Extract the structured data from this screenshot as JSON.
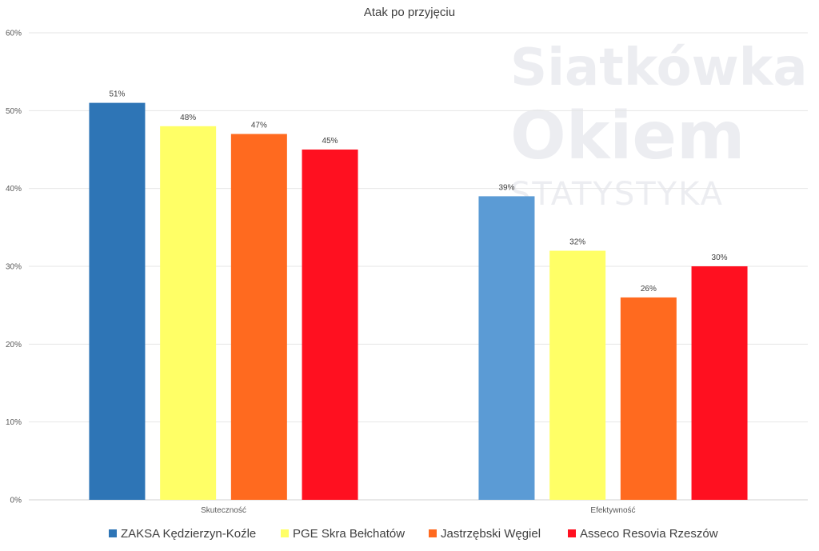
{
  "watermark": {
    "line1": "Siatkówka",
    "line2": "Okiem",
    "line3": "STATYSTYKA"
  },
  "chart_data": {
    "type": "bar",
    "title": "Atak po przyjęciu",
    "categories": [
      "Skuteczność",
      "Efektywność"
    ],
    "ylim": [
      0,
      60
    ],
    "yticks": [
      0,
      10,
      20,
      30,
      40,
      50,
      60
    ],
    "ytick_labels": [
      "0%",
      "10%",
      "20%",
      "30%",
      "40%",
      "50%",
      "60%"
    ],
    "grid": true,
    "legend_position": "bottom",
    "series": [
      {
        "name": "ZAKSA Kędzierzyn-Koźle",
        "values": [
          51,
          39
        ],
        "labels": [
          "51%",
          "39%"
        ],
        "colors": [
          "#2e75b6",
          "#5b9bd5"
        ]
      },
      {
        "name": "PGE Skra Bełchatów",
        "values": [
          48,
          32
        ],
        "labels": [
          "48%",
          "32%"
        ],
        "colors": [
          "#ffff66",
          "#ffff66"
        ]
      },
      {
        "name": "Jastrzębski Węgiel",
        "values": [
          47,
          26
        ],
        "labels": [
          "47%",
          "26%"
        ],
        "colors": [
          "#ff6a1f",
          "#ff6a1f"
        ]
      },
      {
        "name": "Asseco Resovia Rzeszów",
        "values": [
          45,
          30
        ],
        "labels": [
          "45%",
          "30%"
        ],
        "colors": [
          "#ff1020",
          "#ff1020"
        ]
      }
    ]
  }
}
